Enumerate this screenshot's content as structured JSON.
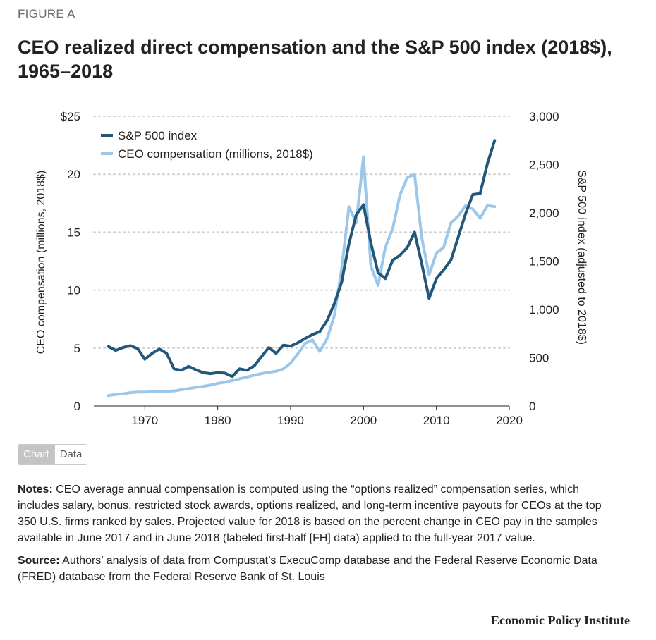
{
  "figure_label": "FIGURE A",
  "title": "CEO realized direct compensation and the S&P 500 index (2018$), 1965–2018",
  "tabs": {
    "chart": "Chart",
    "data": "Data"
  },
  "notes": {
    "notes_label": "Notes:",
    "notes_text": "CEO average annual compensation is computed using the “options realized” compensation series, which includes salary, bonus, restricted stock awards, options realized, and long-term incentive payouts for CEOs at the top 350 U.S. firms ranked by sales. Projected value for 2018 is based on the percent change in CEO pay in the samples available in June 2017 and in June 2018 (labeled first-half [FH] data) applied to the full-year 2017 value.",
    "source_label": "Source:",
    "source_text": "Authors’ analysis of data from Compustat’s ExecuComp database and the Federal Reserve Economic Data (FRED) database from the Federal Reserve Bank of St. Louis"
  },
  "brand": "Economic Policy Institute",
  "chart_data": {
    "type": "line",
    "ylabel_left": "CEO compensation (millions, 2018$)",
    "ylabel_right": "S&P 500 index (adjusted to 2018$)",
    "xlim": [
      1963,
      2020
    ],
    "ylim_left": [
      0,
      25
    ],
    "ylim_right": [
      0,
      3000
    ],
    "x_ticks": [
      "1970",
      "1980",
      "1990",
      "2000",
      "2010",
      "2020"
    ],
    "y_ticks_left": [
      "$25",
      "20",
      "15",
      "10",
      "5",
      "0"
    ],
    "y_ticks_right": [
      "3,000",
      "2,500",
      "2,000",
      "1,500",
      "1,000",
      "500",
      "0"
    ],
    "grid": "horizontal dotted",
    "legend_position": "top-left",
    "colors": {
      "sp500": "#22577a",
      "ceo": "#9cc7e9"
    },
    "series": [
      {
        "name": "S&P 500 index",
        "axis": "right",
        "x": [
          1965,
          1966,
          1967,
          1968,
          1969,
          1970,
          1971,
          1972,
          1973,
          1974,
          1975,
          1976,
          1977,
          1978,
          1979,
          1980,
          1981,
          1982,
          1983,
          1984,
          1985,
          1986,
          1987,
          1988,
          1989,
          1990,
          1991,
          1992,
          1993,
          1994,
          1995,
          1996,
          1997,
          1998,
          1999,
          2000,
          2001,
          2002,
          2003,
          2004,
          2005,
          2006,
          2007,
          2008,
          2009,
          2010,
          2011,
          2012,
          2013,
          2014,
          2015,
          2016,
          2017,
          2018
        ],
        "y": [
          615,
          575,
          605,
          625,
          595,
          485,
          545,
          590,
          545,
          385,
          370,
          410,
          375,
          345,
          335,
          345,
          340,
          305,
          385,
          370,
          415,
          510,
          605,
          545,
          630,
          620,
          655,
          700,
          740,
          770,
          885,
          1060,
          1280,
          1680,
          1980,
          2085,
          1690,
          1380,
          1320,
          1510,
          1560,
          1640,
          1800,
          1470,
          1115,
          1320,
          1410,
          1510,
          1750,
          1990,
          2190,
          2200,
          2510,
          2750
        ]
      },
      {
        "name": "CEO compensation (millions, 2018$)",
        "axis": "left",
        "x": [
          1965,
          1966,
          1967,
          1968,
          1969,
          1970,
          1971,
          1972,
          1973,
          1974,
          1975,
          1976,
          1977,
          1978,
          1979,
          1980,
          1981,
          1982,
          1983,
          1984,
          1985,
          1986,
          1987,
          1988,
          1989,
          1990,
          1991,
          1992,
          1993,
          1994,
          1995,
          1996,
          1997,
          1998,
          1999,
          2000,
          2001,
          2002,
          2003,
          2004,
          2005,
          2006,
          2007,
          2008,
          2009,
          2010,
          2011,
          2012,
          2013,
          2014,
          2015,
          2016,
          2017,
          2018
        ],
        "y": [
          0.9,
          1.0,
          1.05,
          1.15,
          1.2,
          1.2,
          1.22,
          1.25,
          1.28,
          1.3,
          1.4,
          1.5,
          1.6,
          1.7,
          1.8,
          1.95,
          2.05,
          2.2,
          2.35,
          2.5,
          2.65,
          2.8,
          2.9,
          3.0,
          3.2,
          3.7,
          4.5,
          5.4,
          5.7,
          4.7,
          5.8,
          7.8,
          11.8,
          17.2,
          15.8,
          21.5,
          12.1,
          10.4,
          13.7,
          15.3,
          18.2,
          19.7,
          20.0,
          14.5,
          11.3,
          13.2,
          13.7,
          15.8,
          16.4,
          17.3,
          17.0,
          16.2,
          17.3,
          17.2
        ]
      }
    ]
  }
}
